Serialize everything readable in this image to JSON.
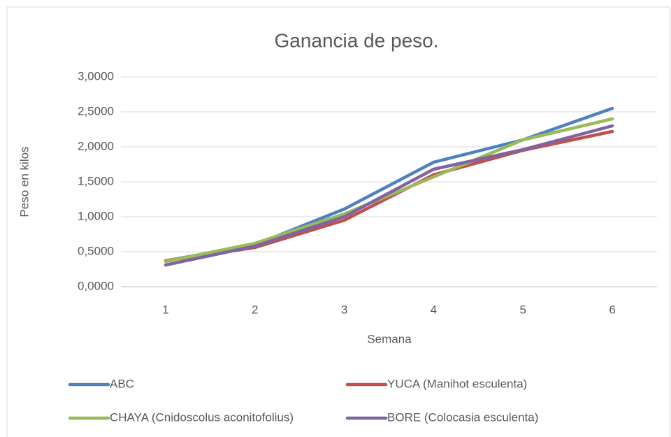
{
  "chart_data": {
    "type": "line",
    "title": "Ganancia de peso.",
    "x_label": "Semana",
    "y_label": "Peso en kilos",
    "categories": [
      "1",
      "2",
      "3",
      "4",
      "5",
      "6"
    ],
    "series": [
      {
        "name": "ABC",
        "color": "#4f81bd",
        "values": [
          0.37,
          0.6,
          1.11,
          1.78,
          2.1,
          2.55
        ]
      },
      {
        "name": "YUCA (Manihot esculenta)",
        "color": "#c0504d",
        "values": [
          0.37,
          0.56,
          0.95,
          1.6,
          1.95,
          2.22
        ]
      },
      {
        "name": "CHAYA (Cnidoscolus aconitofolius)",
        "color": "#9bbb59",
        "values": [
          0.36,
          0.62,
          1.04,
          1.57,
          2.1,
          2.4
        ]
      },
      {
        "name": "BORE (Colocasia esculenta)",
        "color": "#8064a2",
        "values": [
          0.31,
          0.58,
          1.0,
          1.68,
          1.96,
          2.3
        ]
      }
    ],
    "ylim": [
      0,
      3
    ],
    "yticks": [
      {
        "value": 0,
        "label": "0,0000"
      },
      {
        "value": 0.5,
        "label": "0,5000"
      },
      {
        "value": 1,
        "label": "1,0000"
      },
      {
        "value": 1.5,
        "label": "1,5000"
      },
      {
        "value": 2,
        "label": "2,0000"
      },
      {
        "value": 2.5,
        "label": "2,5000"
      },
      {
        "value": 3,
        "label": "3,0000"
      }
    ],
    "grid": true,
    "legend": "bottom"
  }
}
